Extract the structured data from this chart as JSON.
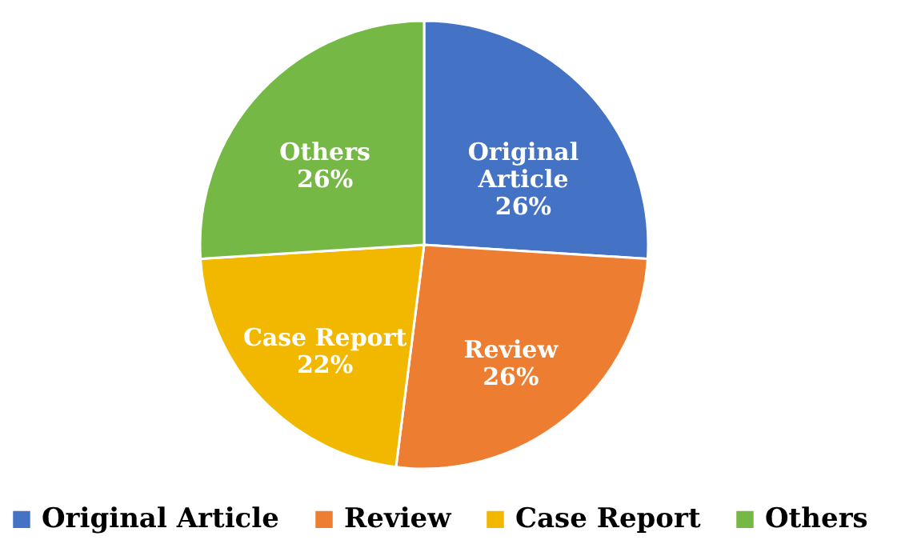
{
  "chart_data": {
    "type": "pie",
    "categories": [
      "Original Article",
      "Review",
      "Case Report",
      "Others"
    ],
    "values": [
      26,
      26,
      22,
      26
    ],
    "value_labels": [
      "26%",
      "26%",
      "22%",
      "26%"
    ],
    "colors": [
      "#4472c4",
      "#ed7d31",
      "#f2b800",
      "#76b845"
    ],
    "legend": "bottom"
  }
}
